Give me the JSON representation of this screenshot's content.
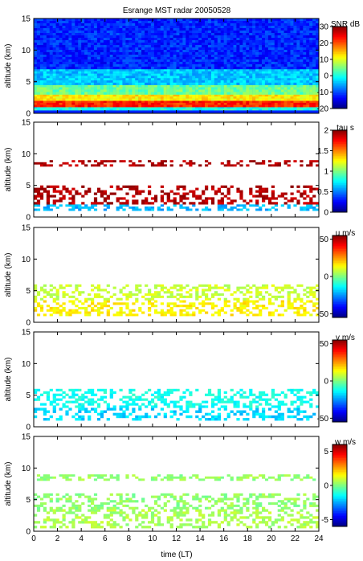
{
  "title": "Esrange MST radar 20050528",
  "xlabel": "time (LT)",
  "x_ticks": [
    "0",
    "2",
    "4",
    "6",
    "8",
    "10",
    "12",
    "14",
    "16",
    "18",
    "20",
    "22",
    "24"
  ],
  "chart_data": [
    {
      "type": "heatmap",
      "name": "snr",
      "ylabel": "altitude (km)",
      "xlim": [
        0,
        24
      ],
      "ylim": [
        0,
        15
      ],
      "y_ticks": [
        0,
        5,
        10,
        15
      ],
      "colorbar": {
        "label": "SNR dB",
        "range": [
          -20,
          30
        ],
        "ticks": [
          30,
          20,
          10,
          0,
          -10,
          -20
        ]
      },
      "layers": [
        {
          "alt": [
            0.5,
            1.0
          ],
          "value": 0
        },
        {
          "alt": [
            1.0,
            2.0
          ],
          "value": 22
        },
        {
          "alt": [
            2.0,
            3.0
          ],
          "value": 12
        },
        {
          "alt": [
            3.0,
            4.5
          ],
          "value": 4
        },
        {
          "alt": [
            4.5,
            7.0
          ],
          "value": -4
        },
        {
          "alt": [
            7.0,
            15.0
          ],
          "value": -12
        }
      ]
    },
    {
      "type": "heatmap",
      "name": "tau",
      "ylabel": "altitude (km)",
      "xlim": [
        0,
        24
      ],
      "ylim": [
        0,
        15
      ],
      "y_ticks": [
        0,
        5,
        10,
        15
      ],
      "colorbar": {
        "label": "tau s",
        "range": [
          0,
          2
        ],
        "ticks": [
          2,
          1.5,
          1,
          0.5,
          0
        ]
      },
      "layers": [
        {
          "alt": [
            1.0,
            2.0
          ],
          "value": 0.6
        },
        {
          "alt": [
            2.0,
            5.0
          ],
          "value": 1.9
        },
        {
          "alt": [
            8.0,
            9.0
          ],
          "value": 1.9
        }
      ]
    },
    {
      "type": "heatmap",
      "name": "u",
      "ylabel": "altitude (km)",
      "xlim": [
        0,
        24
      ],
      "ylim": [
        0,
        15
      ],
      "y_ticks": [
        0,
        5,
        10,
        15
      ],
      "colorbar": {
        "label": "u m/s",
        "range": [
          -55,
          55
        ],
        "ticks": [
          50,
          0,
          -50
        ]
      },
      "layers": [
        {
          "alt": [
            1.0,
            3.5
          ],
          "value": 15
        },
        {
          "alt": [
            3.5,
            6.0
          ],
          "value": 8
        }
      ]
    },
    {
      "type": "heatmap",
      "name": "v",
      "ylabel": "altitude (km)",
      "xlim": [
        0,
        24
      ],
      "ylim": [
        0,
        15
      ],
      "y_ticks": [
        0,
        5,
        10,
        15
      ],
      "colorbar": {
        "label": "v m/s",
        "range": [
          -55,
          55
        ],
        "ticks": [
          50,
          0,
          -50
        ]
      },
      "layers": [
        {
          "alt": [
            1.0,
            3.0
          ],
          "value": -18
        },
        {
          "alt": [
            3.0,
            6.0
          ],
          "value": -12
        }
      ]
    },
    {
      "type": "heatmap",
      "name": "w",
      "ylabel": "altitude (km)",
      "xlim": [
        0,
        24
      ],
      "ylim": [
        0,
        15
      ],
      "y_ticks": [
        0,
        5,
        10,
        15
      ],
      "colorbar": {
        "label": "w m/s",
        "range": [
          -6,
          6
        ],
        "ticks": [
          5,
          0,
          -5
        ]
      },
      "layers": [
        {
          "alt": [
            0.5,
            3.5
          ],
          "value": 0.5
        },
        {
          "alt": [
            3.5,
            6.0
          ],
          "value": 0.2
        },
        {
          "alt": [
            8.0,
            9.0
          ],
          "value": 0.3
        }
      ]
    }
  ]
}
